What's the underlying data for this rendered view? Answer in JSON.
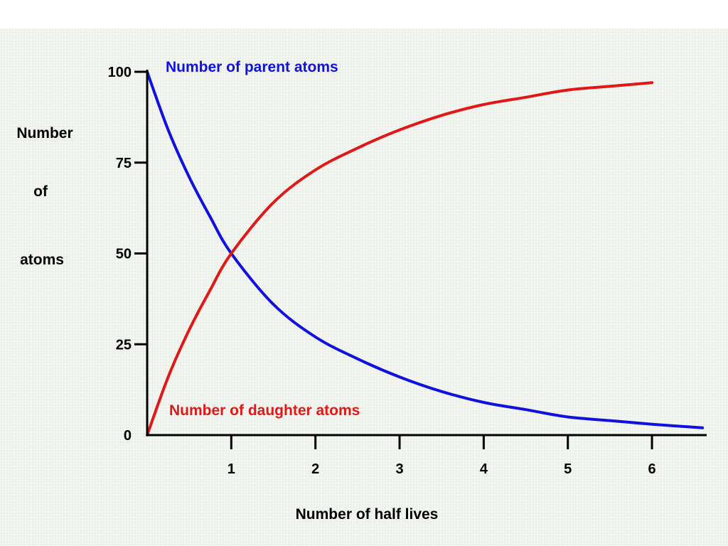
{
  "chart_data": {
    "type": "line",
    "xlabel": "Number of half lives",
    "ylabel_lines": [
      "Number",
      "of",
      "atoms"
    ],
    "xlim": [
      0,
      6.65
    ],
    "ylim": [
      0,
      100
    ],
    "x_ticks": [
      {
        "value": 1,
        "label": "1"
      },
      {
        "value": 2,
        "label": "2"
      },
      {
        "value": 3,
        "label": "3"
      },
      {
        "value": 4,
        "label": "4"
      },
      {
        "value": 5,
        "label": "5"
      },
      {
        "value": 6,
        "label": "6"
      }
    ],
    "y_ticks": [
      {
        "value": 0,
        "label": "0"
      },
      {
        "value": 25,
        "label": "25"
      },
      {
        "value": 50,
        "label": "50"
      },
      {
        "value": 75,
        "label": "75"
      },
      {
        "value": 100,
        "label": "100"
      }
    ],
    "grid": false,
    "series": [
      {
        "name": "Number of parent atoms",
        "color": "#1010e0",
        "x": [
          0,
          0.25,
          0.5,
          0.75,
          1,
          1.5,
          2,
          2.5,
          3,
          3.5,
          4,
          4.5,
          5,
          5.5,
          6,
          6.6
        ],
        "values": [
          100,
          84,
          71,
          60,
          50,
          36,
          27,
          21,
          16,
          12,
          9,
          7,
          5,
          4,
          3,
          2
        ]
      },
      {
        "name": "Number of daughter atoms",
        "color": "#e01818",
        "x": [
          0,
          0.25,
          0.5,
          0.75,
          1,
          1.5,
          2,
          2.5,
          3,
          3.5,
          4,
          4.5,
          5,
          5.5,
          6
        ],
        "values": [
          0,
          16,
          29,
          40,
          50,
          64,
          73,
          79,
          84,
          88,
          91,
          93,
          95,
          96,
          97
        ]
      }
    ]
  }
}
